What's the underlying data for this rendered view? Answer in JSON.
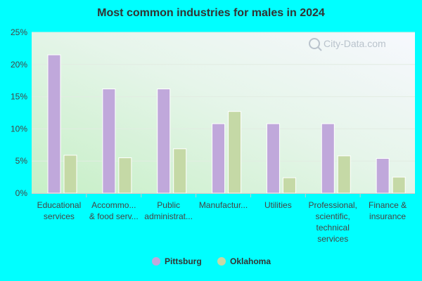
{
  "chart_data": {
    "type": "bar",
    "title": "Most common industries for males in 2024",
    "watermark": "City-Data.com",
    "categories": [
      [
        "Educational",
        "services"
      ],
      [
        "Accommo...",
        "& food serv..."
      ],
      [
        "Public",
        "administrat..."
      ],
      [
        "Manufactur..."
      ],
      [
        "Utilities"
      ],
      [
        "Professional,",
        "scientific,",
        "technical",
        "services"
      ],
      [
        "Finance &",
        "insurance"
      ]
    ],
    "series": [
      {
        "name": "Pittsburg",
        "color": "#c0a8db",
        "values": [
          21.5,
          16.2,
          16.2,
          10.8,
          10.8,
          10.8,
          5.4
        ]
      },
      {
        "name": "Oklahoma",
        "color": "#c5d9a6",
        "values": [
          5.9,
          5.5,
          6.9,
          12.7,
          2.4,
          5.8,
          2.5
        ]
      }
    ],
    "yticks": [
      "0%",
      "5%",
      "10%",
      "15%",
      "20%",
      "25%"
    ],
    "ylim": [
      0,
      25
    ],
    "xlabel": "",
    "ylabel": "",
    "grid": true,
    "legend_position": "bottom"
  }
}
